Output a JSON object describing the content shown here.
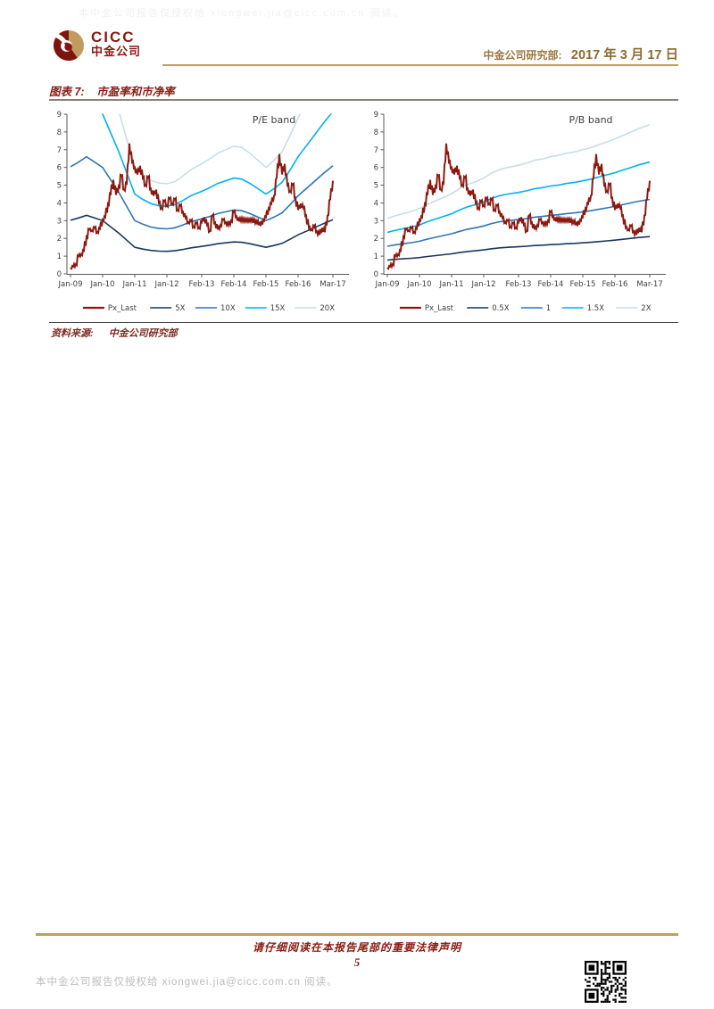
{
  "page": {
    "watermark_top": "本中金公司报告仅授权给 xiongwei.jia@cicc.com.cn 阅读。",
    "watermark_bottom": "本中金公司报告仅授权给 xiongwei.jia@cicc.com.cn 阅读。",
    "footer_notice": "请仔细阅读在本报告尾部的重要法律声明",
    "page_number": "5"
  },
  "header": {
    "logo_text_en": "CICC",
    "logo_text_cn": "中金公司",
    "department": "中金公司研究部:",
    "date": "2017 年 3 月 17 日",
    "colors": {
      "maroon": "#8B1A11",
      "gold_line": "#C0A35A",
      "gold_text": "#9A7840"
    }
  },
  "figure": {
    "label": "图表 7:",
    "title": "市盈率和市净率",
    "source_label": "资料来源:",
    "source": "中金公司研究部"
  },
  "chart_data": [
    {
      "type": "line",
      "title": "P/E band",
      "ylim": [
        0,
        9
      ],
      "yticks": [
        0,
        1,
        2,
        3,
        4,
        5,
        6,
        7,
        8,
        9
      ],
      "xticks": [
        {
          "t": 0,
          "label": "Jan-09"
        },
        {
          "t": 12,
          "label": "Jan-10"
        },
        {
          "t": 24,
          "label": "Jan-11"
        },
        {
          "t": 36,
          "label": "Jan-12"
        },
        {
          "t": 49,
          "label": "Feb-13"
        },
        {
          "t": 61,
          "label": "Feb-14"
        },
        {
          "t": 73,
          "label": "Feb-15"
        },
        {
          "t": 85,
          "label": "Feb-16"
        },
        {
          "t": 98,
          "label": "Mar-17"
        }
      ],
      "x_unit": "months since Jan-09",
      "price_series": {
        "name": "Px_Last",
        "color": "#8B1A11",
        "monthly_values": [
          0.35,
          0.4,
          0.55,
          1.0,
          1.1,
          1.3,
          2.1,
          2.5,
          2.45,
          2.6,
          2.35,
          2.55,
          3.05,
          3.2,
          3.95,
          4.5,
          5.3,
          4.45,
          4.95,
          5.55,
          4.75,
          5.1,
          7.35,
          6.3,
          6.0,
          5.6,
          6.1,
          5.4,
          5.0,
          5.45,
          4.8,
          4.4,
          4.75,
          4.0,
          3.7,
          4.1,
          3.85,
          4.25,
          3.95,
          4.2,
          3.6,
          3.85,
          3.5,
          3.15,
          2.9,
          3.0,
          2.65,
          2.85,
          2.6,
          2.9,
          3.2,
          2.75,
          2.4,
          3.3,
          2.9,
          2.5,
          2.75,
          3.05,
          2.9,
          2.75,
          3.0,
          3.5,
          3.25,
          2.95,
          3.15,
          2.95,
          3.1,
          2.95,
          3.1,
          2.85,
          3.0,
          2.7,
          3.05,
          3.2,
          3.7,
          3.95,
          4.4,
          5.4,
          6.75,
          5.6,
          6.2,
          5.0,
          4.65,
          5.05,
          4.3,
          3.6,
          3.95,
          3.7,
          3.3,
          2.6,
          2.5,
          2.7,
          2.4,
          2.2,
          2.6,
          2.35,
          3.3,
          4.2,
          5.25
        ]
      },
      "bands": {
        "x": [
          0,
          3,
          6,
          9,
          12,
          15,
          18,
          21,
          24,
          27,
          30,
          33,
          36,
          39,
          42,
          45,
          49,
          52,
          55,
          58,
          61,
          64,
          67,
          70,
          73,
          76,
          79,
          82,
          85,
          88,
          91,
          94,
          98
        ],
        "series": [
          {
            "name": "5X",
            "color": "#17375E",
            "values": [
              3.02,
              3.15,
              3.3,
              3.15,
              3.0,
              2.65,
              2.3,
              1.9,
              1.5,
              1.4,
              1.32,
              1.28,
              1.27,
              1.3,
              1.38,
              1.47,
              1.55,
              1.62,
              1.7,
              1.75,
              1.8,
              1.78,
              1.7,
              1.6,
              1.5,
              1.6,
              1.72,
              1.95,
              2.2,
              2.4,
              2.6,
              2.8,
              3.05
            ]
          },
          {
            "name": "10X",
            "color": "#2E75B6",
            "values": [
              6.04,
              6.3,
              6.6,
              6.3,
              6.0,
              5.3,
              4.6,
              3.8,
              3.0,
              2.8,
              2.64,
              2.56,
              2.54,
              2.6,
              2.76,
              2.94,
              3.1,
              3.24,
              3.4,
              3.5,
              3.6,
              3.56,
              3.4,
              3.2,
              3.0,
              3.2,
              3.44,
              3.9,
              4.4,
              4.8,
              5.2,
              5.6,
              6.1
            ]
          },
          {
            "name": "15X",
            "color": "#00B0F0",
            "values": [
              9.06,
              9.45,
              9.9,
              9.45,
              9.0,
              7.95,
              6.9,
              5.7,
              4.5,
              4.2,
              3.96,
              3.84,
              3.81,
              3.9,
              4.14,
              4.41,
              4.65,
              4.86,
              5.1,
              5.25,
              5.4,
              5.34,
              5.1,
              4.8,
              4.5,
              4.8,
              5.16,
              5.85,
              6.6,
              7.2,
              7.8,
              8.4,
              9.15
            ]
          },
          {
            "name": "20X",
            "color": "#C6DEE8",
            "values": [
              12.08,
              12.6,
              13.2,
              12.6,
              12.0,
              10.6,
              9.2,
              7.6,
              6.0,
              5.6,
              5.28,
              5.12,
              5.08,
              5.2,
              5.52,
              5.88,
              6.2,
              6.48,
              6.8,
              7.0,
              7.2,
              7.12,
              6.8,
              6.4,
              6.0,
              6.4,
              6.88,
              7.8,
              8.8,
              9.6,
              10.4,
              11.2,
              12.2
            ]
          }
        ]
      },
      "legend": [
        "Px_Last",
        "5X",
        "10X",
        "15X",
        "20X"
      ],
      "legend_position": "bottom",
      "grid": false
    },
    {
      "type": "line",
      "title": "P/B band",
      "ylim": [
        0,
        9
      ],
      "yticks": [
        0,
        1,
        2,
        3,
        4,
        5,
        6,
        7,
        8,
        9
      ],
      "xticks": [
        {
          "t": 0,
          "label": "Jan-09"
        },
        {
          "t": 12,
          "label": "Jan-10"
        },
        {
          "t": 24,
          "label": "Jan-11"
        },
        {
          "t": 36,
          "label": "Jan-12"
        },
        {
          "t": 49,
          "label": "Feb-13"
        },
        {
          "t": 61,
          "label": "Feb-14"
        },
        {
          "t": 73,
          "label": "Feb-15"
        },
        {
          "t": 85,
          "label": "Feb-16"
        },
        {
          "t": 98,
          "label": "Mar-17"
        }
      ],
      "x_unit": "months since Jan-09",
      "price_series": {
        "name": "Px_Last",
        "color": "#8B1A11",
        "monthly_values": [
          0.35,
          0.4,
          0.55,
          1.0,
          1.1,
          1.3,
          2.1,
          2.5,
          2.45,
          2.6,
          2.35,
          2.55,
          3.05,
          3.2,
          3.95,
          4.5,
          5.3,
          4.45,
          4.95,
          5.55,
          4.75,
          5.1,
          7.35,
          6.3,
          6.0,
          5.6,
          6.1,
          5.4,
          5.0,
          5.45,
          4.8,
          4.4,
          4.75,
          4.0,
          3.7,
          4.1,
          3.85,
          4.25,
          3.95,
          4.2,
          3.6,
          3.85,
          3.5,
          3.15,
          2.9,
          3.0,
          2.65,
          2.85,
          2.6,
          2.9,
          3.2,
          2.75,
          2.4,
          3.3,
          2.9,
          2.5,
          2.75,
          3.05,
          2.9,
          2.75,
          3.0,
          3.5,
          3.25,
          2.95,
          3.15,
          2.95,
          3.1,
          2.95,
          3.1,
          2.85,
          3.0,
          2.7,
          3.05,
          3.2,
          3.7,
          3.95,
          4.4,
          5.4,
          6.75,
          5.6,
          6.2,
          5.0,
          4.65,
          5.05,
          4.3,
          3.6,
          3.95,
          3.7,
          3.3,
          2.6,
          2.5,
          2.7,
          2.4,
          2.2,
          2.6,
          2.35,
          3.3,
          4.2,
          5.25
        ]
      },
      "bands": {
        "x": [
          0,
          3,
          6,
          9,
          12,
          15,
          18,
          21,
          24,
          27,
          30,
          33,
          36,
          39,
          42,
          45,
          49,
          52,
          55,
          58,
          61,
          64,
          67,
          70,
          73,
          76,
          79,
          82,
          85,
          88,
          91,
          94,
          98
        ],
        "series": [
          {
            "name": "0.5X",
            "color": "#17375E",
            "values": [
              0.78,
              0.82,
              0.85,
              0.88,
              0.92,
              0.98,
              1.03,
              1.08,
              1.13,
              1.2,
              1.26,
              1.3,
              1.35,
              1.42,
              1.47,
              1.5,
              1.53,
              1.56,
              1.6,
              1.62,
              1.65,
              1.67,
              1.7,
              1.72,
              1.75,
              1.78,
              1.82,
              1.86,
              1.9,
              1.95,
              2.0,
              2.05,
              2.1
            ]
          },
          {
            "name": "1",
            "color": "#2E75B6",
            "values": [
              1.56,
              1.64,
              1.7,
              1.76,
              1.84,
              1.96,
              2.06,
              2.16,
              2.26,
              2.4,
              2.52,
              2.6,
              2.7,
              2.84,
              2.94,
              3.0,
              3.06,
              3.12,
              3.2,
              3.24,
              3.3,
              3.34,
              3.4,
              3.44,
              3.5,
              3.56,
              3.64,
              3.72,
              3.8,
              3.9,
              4.0,
              4.1,
              4.2
            ]
          },
          {
            "name": "1.5X",
            "color": "#00B0F0",
            "values": [
              2.34,
              2.46,
              2.55,
              2.64,
              2.76,
              2.94,
              3.09,
              3.24,
              3.39,
              3.6,
              3.78,
              3.9,
              4.05,
              4.26,
              4.41,
              4.5,
              4.59,
              4.68,
              4.8,
              4.86,
              4.95,
              5.01,
              5.1,
              5.16,
              5.25,
              5.34,
              5.46,
              5.58,
              5.7,
              5.85,
              6.0,
              6.15,
              6.3
            ]
          },
          {
            "name": "2X",
            "color": "#C6DEE8",
            "values": [
              3.12,
              3.28,
              3.4,
              3.52,
              3.68,
              3.92,
              4.12,
              4.32,
              4.52,
              4.8,
              5.04,
              5.2,
              5.4,
              5.68,
              5.88,
              6.0,
              6.12,
              6.24,
              6.4,
              6.48,
              6.6,
              6.68,
              6.8,
              6.88,
              7.0,
              7.12,
              7.28,
              7.44,
              7.6,
              7.8,
              8.0,
              8.2,
              8.4
            ]
          }
        ]
      },
      "legend": [
        "Px_Last",
        "0.5X",
        "1",
        "1.5X",
        "2X"
      ],
      "legend_position": "bottom",
      "grid": false
    }
  ]
}
